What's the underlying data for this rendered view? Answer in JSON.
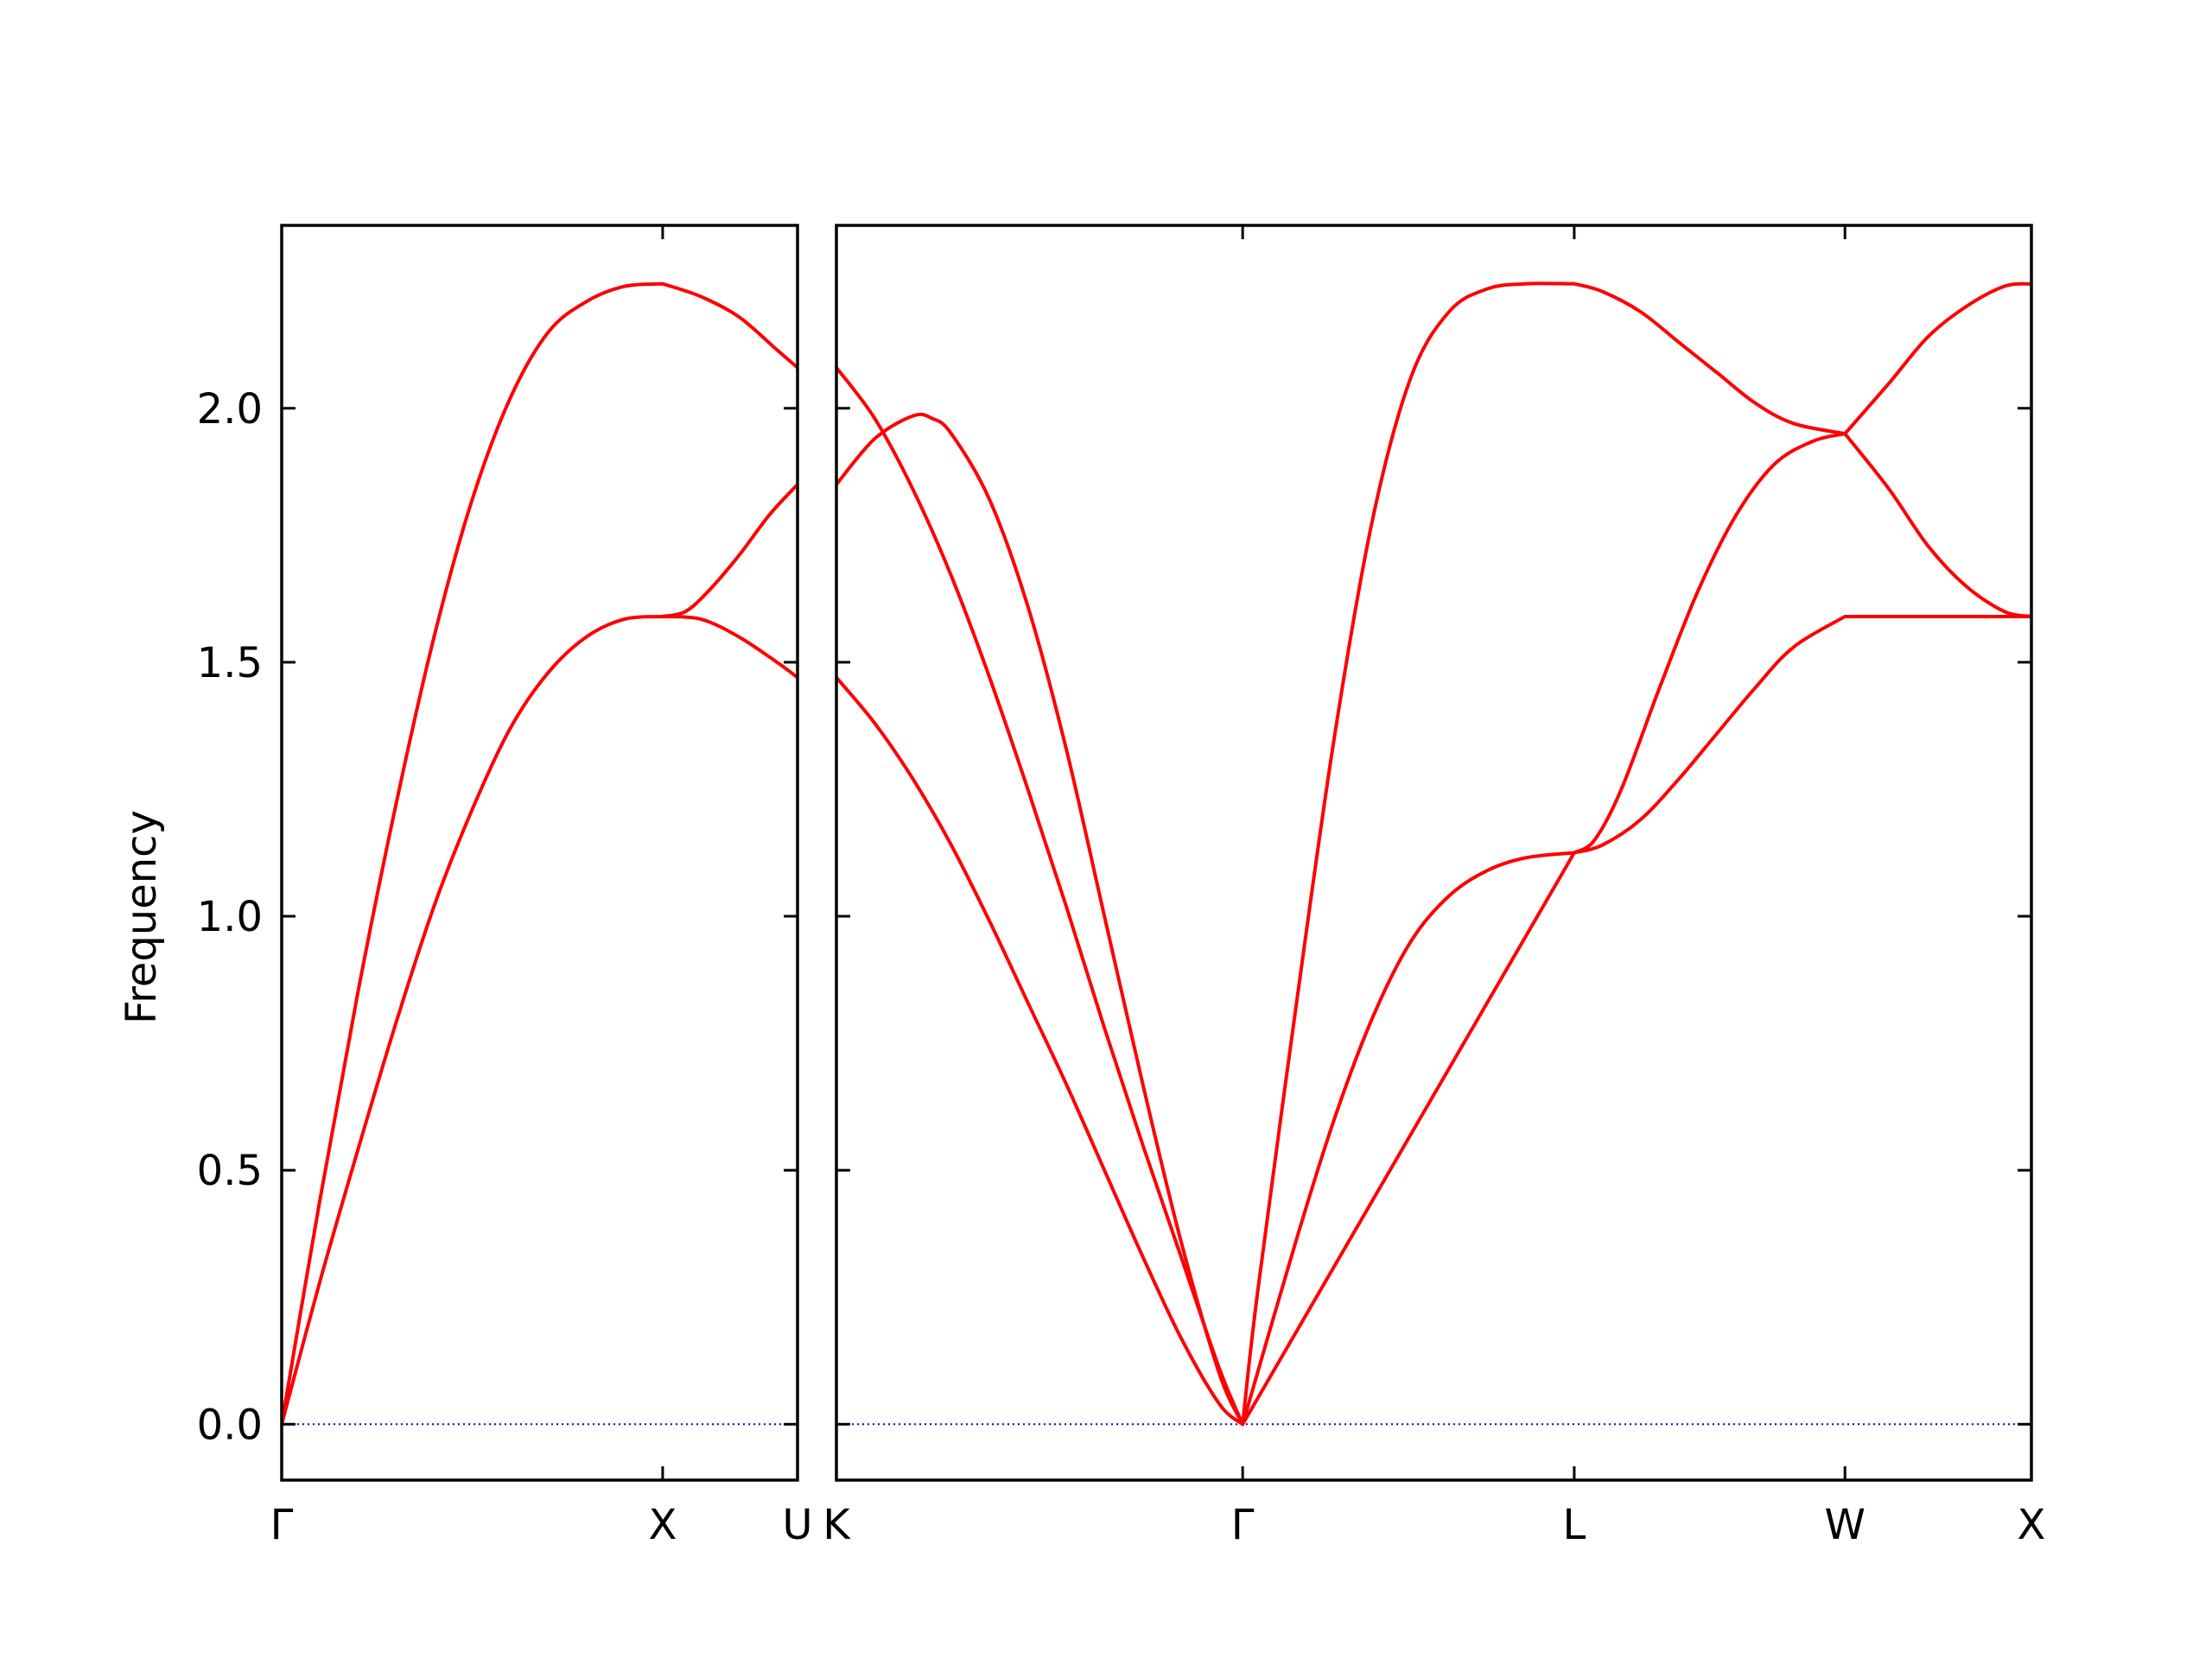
{
  "chart_data": {
    "type": "line",
    "ylabel": "Frequency",
    "ylim": [
      -0.11,
      2.36
    ],
    "yticks": [
      "0.0",
      "0.5",
      "1.0",
      "1.5",
      "2.0"
    ],
    "ytick_values": [
      0.0,
      0.5,
      1.0,
      1.5,
      2.0
    ],
    "colors": {
      "bands": "#ff0000",
      "zero_line": "#0000cc",
      "axes": "#000000"
    },
    "panels": [
      {
        "name": "panel-1",
        "x_range": [
          0,
          1.354
        ],
        "high_symmetry": [
          {
            "label": "Γ",
            "x": 0.0
          },
          {
            "label": "X",
            "x": 1.0
          },
          {
            "label": "U",
            "x": 1.354
          }
        ],
        "bands": [
          {
            "name": "band-1",
            "points": [
              [
                0,
                0
              ],
              [
                0.1,
                0.28
              ],
              [
                0.2,
                0.54
              ],
              [
                0.3,
                0.79
              ],
              [
                0.4,
                1.02
              ],
              [
                0.5,
                1.21
              ],
              [
                0.6,
                1.37
              ],
              [
                0.7,
                1.48
              ],
              [
                0.8,
                1.55
              ],
              [
                0.9,
                1.585
              ],
              [
                1.0,
                1.59
              ],
              [
                1.1,
                1.585
              ],
              [
                1.2,
                1.55
              ],
              [
                1.3,
                1.5
              ],
              [
                1.354,
                1.47
              ]
            ]
          },
          {
            "name": "band-2",
            "points": [
              [
                0,
                0
              ],
              [
                0.1,
                0.44
              ],
              [
                0.2,
                0.85
              ],
              [
                0.3,
                1.22
              ],
              [
                0.4,
                1.55
              ],
              [
                0.5,
                1.82
              ],
              [
                0.6,
                2.02
              ],
              [
                0.7,
                2.15
              ],
              [
                0.8,
                2.21
              ],
              [
                0.9,
                2.24
              ],
              [
                1.0,
                2.245
              ],
              [
                1.1,
                2.22
              ],
              [
                1.2,
                2.18
              ],
              [
                1.3,
                2.115
              ],
              [
                1.354,
                2.08
              ]
            ]
          },
          {
            "name": "band-3",
            "points": [
              [
                1.0,
                1.59
              ],
              [
                1.06,
                1.6
              ],
              [
                1.12,
                1.64
              ],
              [
                1.2,
                1.71
              ],
              [
                1.28,
                1.79
              ],
              [
                1.354,
                1.85
              ]
            ]
          }
        ]
      },
      {
        "name": "panel-2",
        "x_range": [
          0,
          3.121
        ],
        "high_symmetry": [
          {
            "label": "K",
            "x": 0.0
          },
          {
            "label": "Γ",
            "x": 1.061
          },
          {
            "label": "L",
            "x": 1.927
          },
          {
            "label": "W",
            "x": 2.634
          },
          {
            "label": "X",
            "x": 3.121
          }
        ],
        "bands": [
          {
            "name": "band-1",
            "points": [
              [
                0,
                1.47
              ],
              [
                0.1,
                1.38
              ],
              [
                0.2,
                1.27
              ],
              [
                0.3,
                1.14
              ],
              [
                0.4,
                0.99
              ],
              [
                0.5,
                0.83
              ],
              [
                0.6,
                0.67
              ],
              [
                0.7,
                0.5
              ],
              [
                0.8,
                0.33
              ],
              [
                0.9,
                0.17
              ],
              [
                1.0,
                0.04
              ],
              [
                1.061,
                0
              ],
              [
                1.2,
                0.36
              ],
              [
                1.3,
                0.6
              ],
              [
                1.4,
                0.8
              ],
              [
                1.5,
                0.95
              ],
              [
                1.6,
                1.04
              ],
              [
                1.7,
                1.09
              ],
              [
                1.8,
                1.115
              ],
              [
                1.927,
                1.125
              ],
              [
                2.0,
                1.14
              ],
              [
                2.1,
                1.19
              ],
              [
                2.2,
                1.27
              ],
              [
                2.3,
                1.36
              ],
              [
                2.4,
                1.45
              ],
              [
                2.5,
                1.53
              ],
              [
                2.634,
                1.59
              ],
              [
                2.8,
                1.59
              ],
              [
                3.0,
                1.59
              ],
              [
                3.121,
                1.59
              ]
            ]
          },
          {
            "name": "band-2",
            "points": [
              [
                0,
                2.08
              ],
              [
                0.1,
                1.98
              ],
              [
                0.2,
                1.84
              ],
              [
                0.3,
                1.67
              ],
              [
                0.4,
                1.47
              ],
              [
                0.5,
                1.25
              ],
              [
                0.6,
                1.02
              ],
              [
                0.7,
                0.78
              ],
              [
                0.8,
                0.55
              ],
              [
                0.9,
                0.33
              ],
              [
                1.0,
                0.11
              ],
              [
                1.061,
                0
              ],
              [
                1.927,
                1.125
              ],
              [
                1.98,
                1.15
              ],
              [
                2.05,
                1.25
              ],
              [
                2.15,
                1.45
              ],
              [
                2.25,
                1.64
              ],
              [
                2.35,
                1.79
              ],
              [
                2.45,
                1.89
              ],
              [
                2.55,
                1.935
              ],
              [
                2.634,
                1.95
              ],
              [
                2.75,
                1.84
              ],
              [
                2.85,
                1.73
              ],
              [
                2.95,
                1.65
              ],
              [
                3.05,
                1.6
              ],
              [
                3.121,
                1.59
              ]
            ]
          },
          {
            "name": "band-3",
            "points": [
              [
                0,
                1.85
              ],
              [
                0.1,
                1.94
              ],
              [
                0.2,
                1.985
              ],
              [
                0.25,
                1.98
              ],
              [
                0.3,
                1.95
              ],
              [
                0.4,
                1.82
              ],
              [
                0.5,
                1.61
              ],
              [
                0.6,
                1.33
              ],
              [
                0.7,
                1.0
              ],
              [
                0.8,
                0.67
              ],
              [
                0.9,
                0.36
              ],
              [
                1.0,
                0.1
              ],
              [
                1.061,
                0
              ],
              [
                1.1,
                0.26
              ],
              [
                1.2,
                0.82
              ],
              [
                1.3,
                1.35
              ],
              [
                1.4,
                1.78
              ],
              [
                1.5,
                2.06
              ],
              [
                1.6,
                2.19
              ],
              [
                1.7,
                2.235
              ],
              [
                1.8,
                2.245
              ],
              [
                1.927,
                2.245
              ],
              [
                2.0,
                2.23
              ],
              [
                2.1,
                2.19
              ],
              [
                2.2,
                2.13
              ],
              [
                2.3,
                2.07
              ],
              [
                2.4,
                2.01
              ],
              [
                2.5,
                1.97
              ],
              [
                2.634,
                1.95
              ],
              [
                2.75,
                2.05
              ],
              [
                2.85,
                2.14
              ],
              [
                2.95,
                2.2
              ],
              [
                3.05,
                2.24
              ],
              [
                3.121,
                2.245
              ]
            ]
          }
        ]
      }
    ]
  }
}
